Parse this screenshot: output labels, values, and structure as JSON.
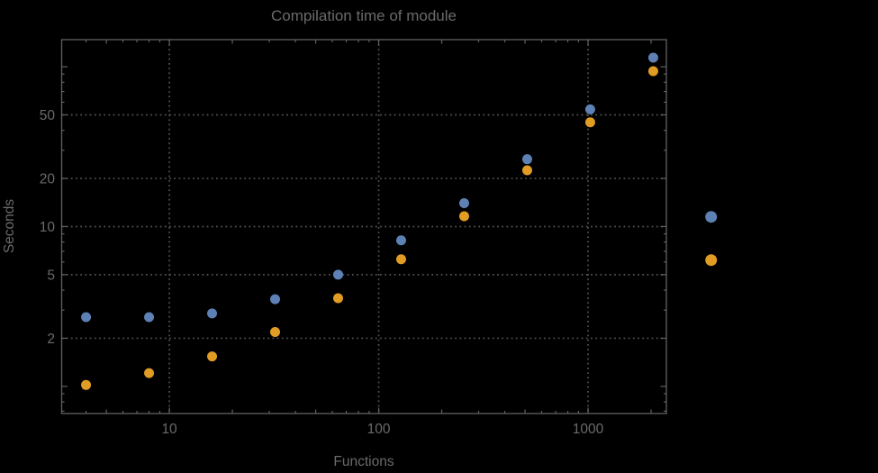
{
  "chart_data": {
    "type": "scatter",
    "title": "Compilation time of module",
    "xlabel": "Functions",
    "ylabel": "Seconds",
    "x_scale": "log",
    "y_scale": "log",
    "grid": true,
    "background_color": "#000000",
    "text_color": "#6a6a6a",
    "frame_color": "#616161",
    "grid_color": "#555555",
    "x_range": [
      3.06,
      2366
    ],
    "y_range": [
      0.676,
      147.8
    ],
    "x_gridlines": [
      10,
      100,
      1000
    ],
    "y_gridlines": [
      2,
      5,
      10,
      20,
      50
    ],
    "x_tick_labels": [
      {
        "value": 10,
        "label": "10"
      },
      {
        "value": 100,
        "label": "100"
      },
      {
        "value": 1000,
        "label": "1000"
      }
    ],
    "y_tick_labels": [
      {
        "value": 2,
        "label": "2"
      },
      {
        "value": 5,
        "label": "5"
      },
      {
        "value": 10,
        "label": "10"
      },
      {
        "value": 20,
        "label": "20"
      },
      {
        "value": 50,
        "label": "50"
      }
    ],
    "x": [
      4,
      8,
      16,
      32,
      64,
      128,
      256,
      512,
      1024,
      2048
    ],
    "series": [
      {
        "name": "series-1",
        "color": "#5E81B5",
        "values": [
          2.71,
          2.71,
          2.86,
          3.51,
          5.0,
          8.2,
          14.0,
          26.4,
          54.1,
          114.0
        ]
      },
      {
        "name": "series-2",
        "color": "#E19C24",
        "values": [
          1.02,
          1.21,
          1.54,
          2.19,
          3.56,
          6.24,
          11.6,
          22.5,
          44.9,
          93.8
        ]
      }
    ],
    "legend": {
      "position": "outside-right",
      "labels_visible": false,
      "markers": [
        {
          "series": "series-1",
          "color": "#5E81B5"
        },
        {
          "series": "series-2",
          "color": "#E19C24"
        }
      ]
    }
  }
}
